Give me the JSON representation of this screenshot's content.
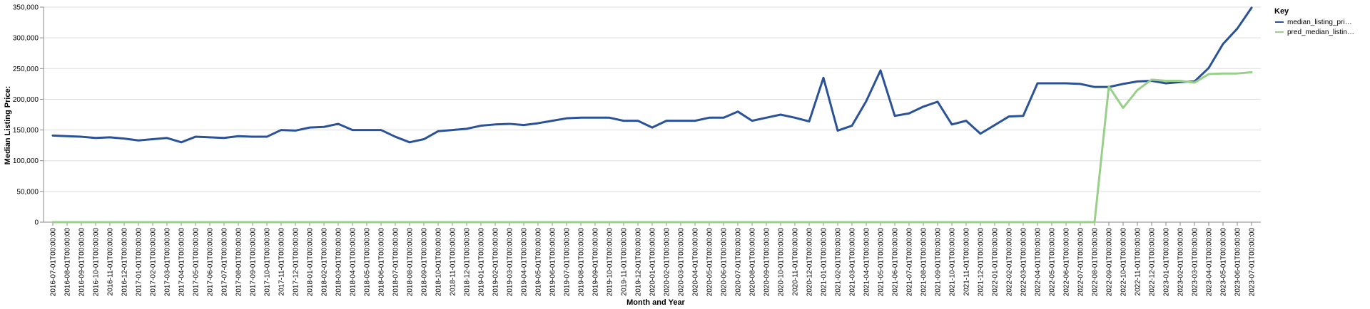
{
  "chart_data": {
    "type": "line",
    "xlabel": "Month and Year",
    "ylabel": "Median Listing Price:",
    "ylim": [
      0,
      350000
    ],
    "yticks": [
      "0",
      "50,000",
      "100,000",
      "150,000",
      "200,000",
      "250,000",
      "300,000",
      "350,000"
    ],
    "ytick_values": [
      0,
      50000,
      100000,
      150000,
      200000,
      250000,
      300000,
      350000
    ],
    "grid": true,
    "x": [
      "2016-07-01T00:00:00",
      "2016-08-01T00:00:00",
      "2016-09-01T00:00:00",
      "2016-10-01T00:00:00",
      "2016-11-01T00:00:00",
      "2016-12-01T00:00:00",
      "2017-01-01T00:00:00",
      "2017-02-01T00:00:00",
      "2017-03-01T00:00:00",
      "2017-04-01T00:00:00",
      "2017-05-01T00:00:00",
      "2017-06-01T00:00:00",
      "2017-07-01T00:00:00",
      "2017-08-01T00:00:00",
      "2017-09-01T00:00:00",
      "2017-10-01T00:00:00",
      "2017-11-01T00:00:00",
      "2017-12-01T00:00:00",
      "2018-01-01T00:00:00",
      "2018-02-01T00:00:00",
      "2018-03-01T00:00:00",
      "2018-04-01T00:00:00",
      "2018-05-01T00:00:00",
      "2018-06-01T00:00:00",
      "2018-07-01T00:00:00",
      "2018-08-01T00:00:00",
      "2018-09-01T00:00:00",
      "2018-10-01T00:00:00",
      "2018-11-01T00:00:00",
      "2018-12-01T00:00:00",
      "2019-01-01T00:00:00",
      "2019-02-01T00:00:00",
      "2019-03-01T00:00:00",
      "2019-04-01T00:00:00",
      "2019-05-01T00:00:00",
      "2019-06-01T00:00:00",
      "2019-07-01T00:00:00",
      "2019-08-01T00:00:00",
      "2019-09-01T00:00:00",
      "2019-10-01T00:00:00",
      "2019-11-01T00:00:00",
      "2019-12-01T00:00:00",
      "2020-01-01T00:00:00",
      "2020-02-01T00:00:00",
      "2020-03-01T00:00:00",
      "2020-04-01T00:00:00",
      "2020-05-01T00:00:00",
      "2020-06-01T00:00:00",
      "2020-07-01T00:00:00",
      "2020-08-01T00:00:00",
      "2020-09-01T00:00:00",
      "2020-10-01T00:00:00",
      "2020-11-01T00:00:00",
      "2020-12-01T00:00:00",
      "2021-01-01T00:00:00",
      "2021-02-01T00:00:00",
      "2021-03-01T00:00:00",
      "2021-04-01T00:00:00",
      "2021-05-01T00:00:00",
      "2021-06-01T00:00:00",
      "2021-07-01T00:00:00",
      "2021-08-01T00:00:00",
      "2021-09-01T00:00:00",
      "2021-10-01T00:00:00",
      "2021-11-01T00:00:00",
      "2021-12-01T00:00:00",
      "2022-01-01T00:00:00",
      "2022-02-01T00:00:00",
      "2022-03-01T00:00:00",
      "2022-04-01T00:00:00",
      "2022-05-01T00:00:00",
      "2022-06-01T00:00:00",
      "2022-07-01T00:00:00",
      "2022-08-01T00:00:00",
      "2022-09-01T00:00:00",
      "2022-10-01T00:00:00",
      "2022-11-01T00:00:00",
      "2022-12-01T00:00:00",
      "2023-01-01T00:00:00",
      "2023-02-01T00:00:00",
      "2023-03-01T00:00:00",
      "2023-04-01T00:00:00",
      "2023-05-01T00:00:00",
      "2023-06-01T00:00:00",
      "2023-07-01T00:00:00"
    ],
    "legend": {
      "title": "Key",
      "position": "top-right"
    },
    "series": [
      {
        "name": "median_listing_pri…",
        "color": "#2a5298",
        "values": [
          141000,
          140000,
          139000,
          137000,
          138000,
          136000,
          133000,
          135000,
          137000,
          130000,
          139000,
          138000,
          137000,
          140000,
          139000,
          139000,
          150000,
          149000,
          154000,
          155000,
          160000,
          150000,
          150000,
          150000,
          139000,
          130000,
          135000,
          148000,
          150000,
          152000,
          157000,
          159000,
          160000,
          158000,
          161000,
          165000,
          169000,
          170000,
          170000,
          170000,
          165000,
          165000,
          154000,
          165000,
          165000,
          165000,
          170000,
          170000,
          180000,
          165000,
          170000,
          175000,
          170000,
          164000,
          235000,
          149000,
          157000,
          197000,
          247000,
          173000,
          177000,
          188000,
          196000,
          159000,
          165000,
          144000,
          158000,
          172000,
          173000,
          226000,
          226000,
          226000,
          225000,
          220000,
          220000,
          225000,
          229000,
          230000,
          226000,
          228000,
          229000,
          251000,
          290000,
          315000,
          349000
        ]
      },
      {
        "name": "pred_median_listin…",
        "color": "#98d08a",
        "values": [
          0,
          0,
          0,
          0,
          0,
          0,
          0,
          0,
          0,
          0,
          0,
          0,
          0,
          0,
          0,
          0,
          0,
          0,
          0,
          0,
          0,
          0,
          0,
          0,
          0,
          0,
          0,
          0,
          0,
          0,
          0,
          0,
          0,
          0,
          0,
          0,
          0,
          0,
          0,
          0,
          0,
          0,
          0,
          0,
          0,
          0,
          0,
          0,
          0,
          0,
          0,
          0,
          0,
          0,
          0,
          0,
          0,
          0,
          0,
          0,
          0,
          0,
          0,
          0,
          0,
          0,
          0,
          0,
          0,
          0,
          0,
          0,
          0,
          0,
          221000,
          186000,
          215000,
          232000,
          230000,
          230000,
          227000,
          241000,
          242000,
          242000,
          244000
        ]
      }
    ]
  }
}
